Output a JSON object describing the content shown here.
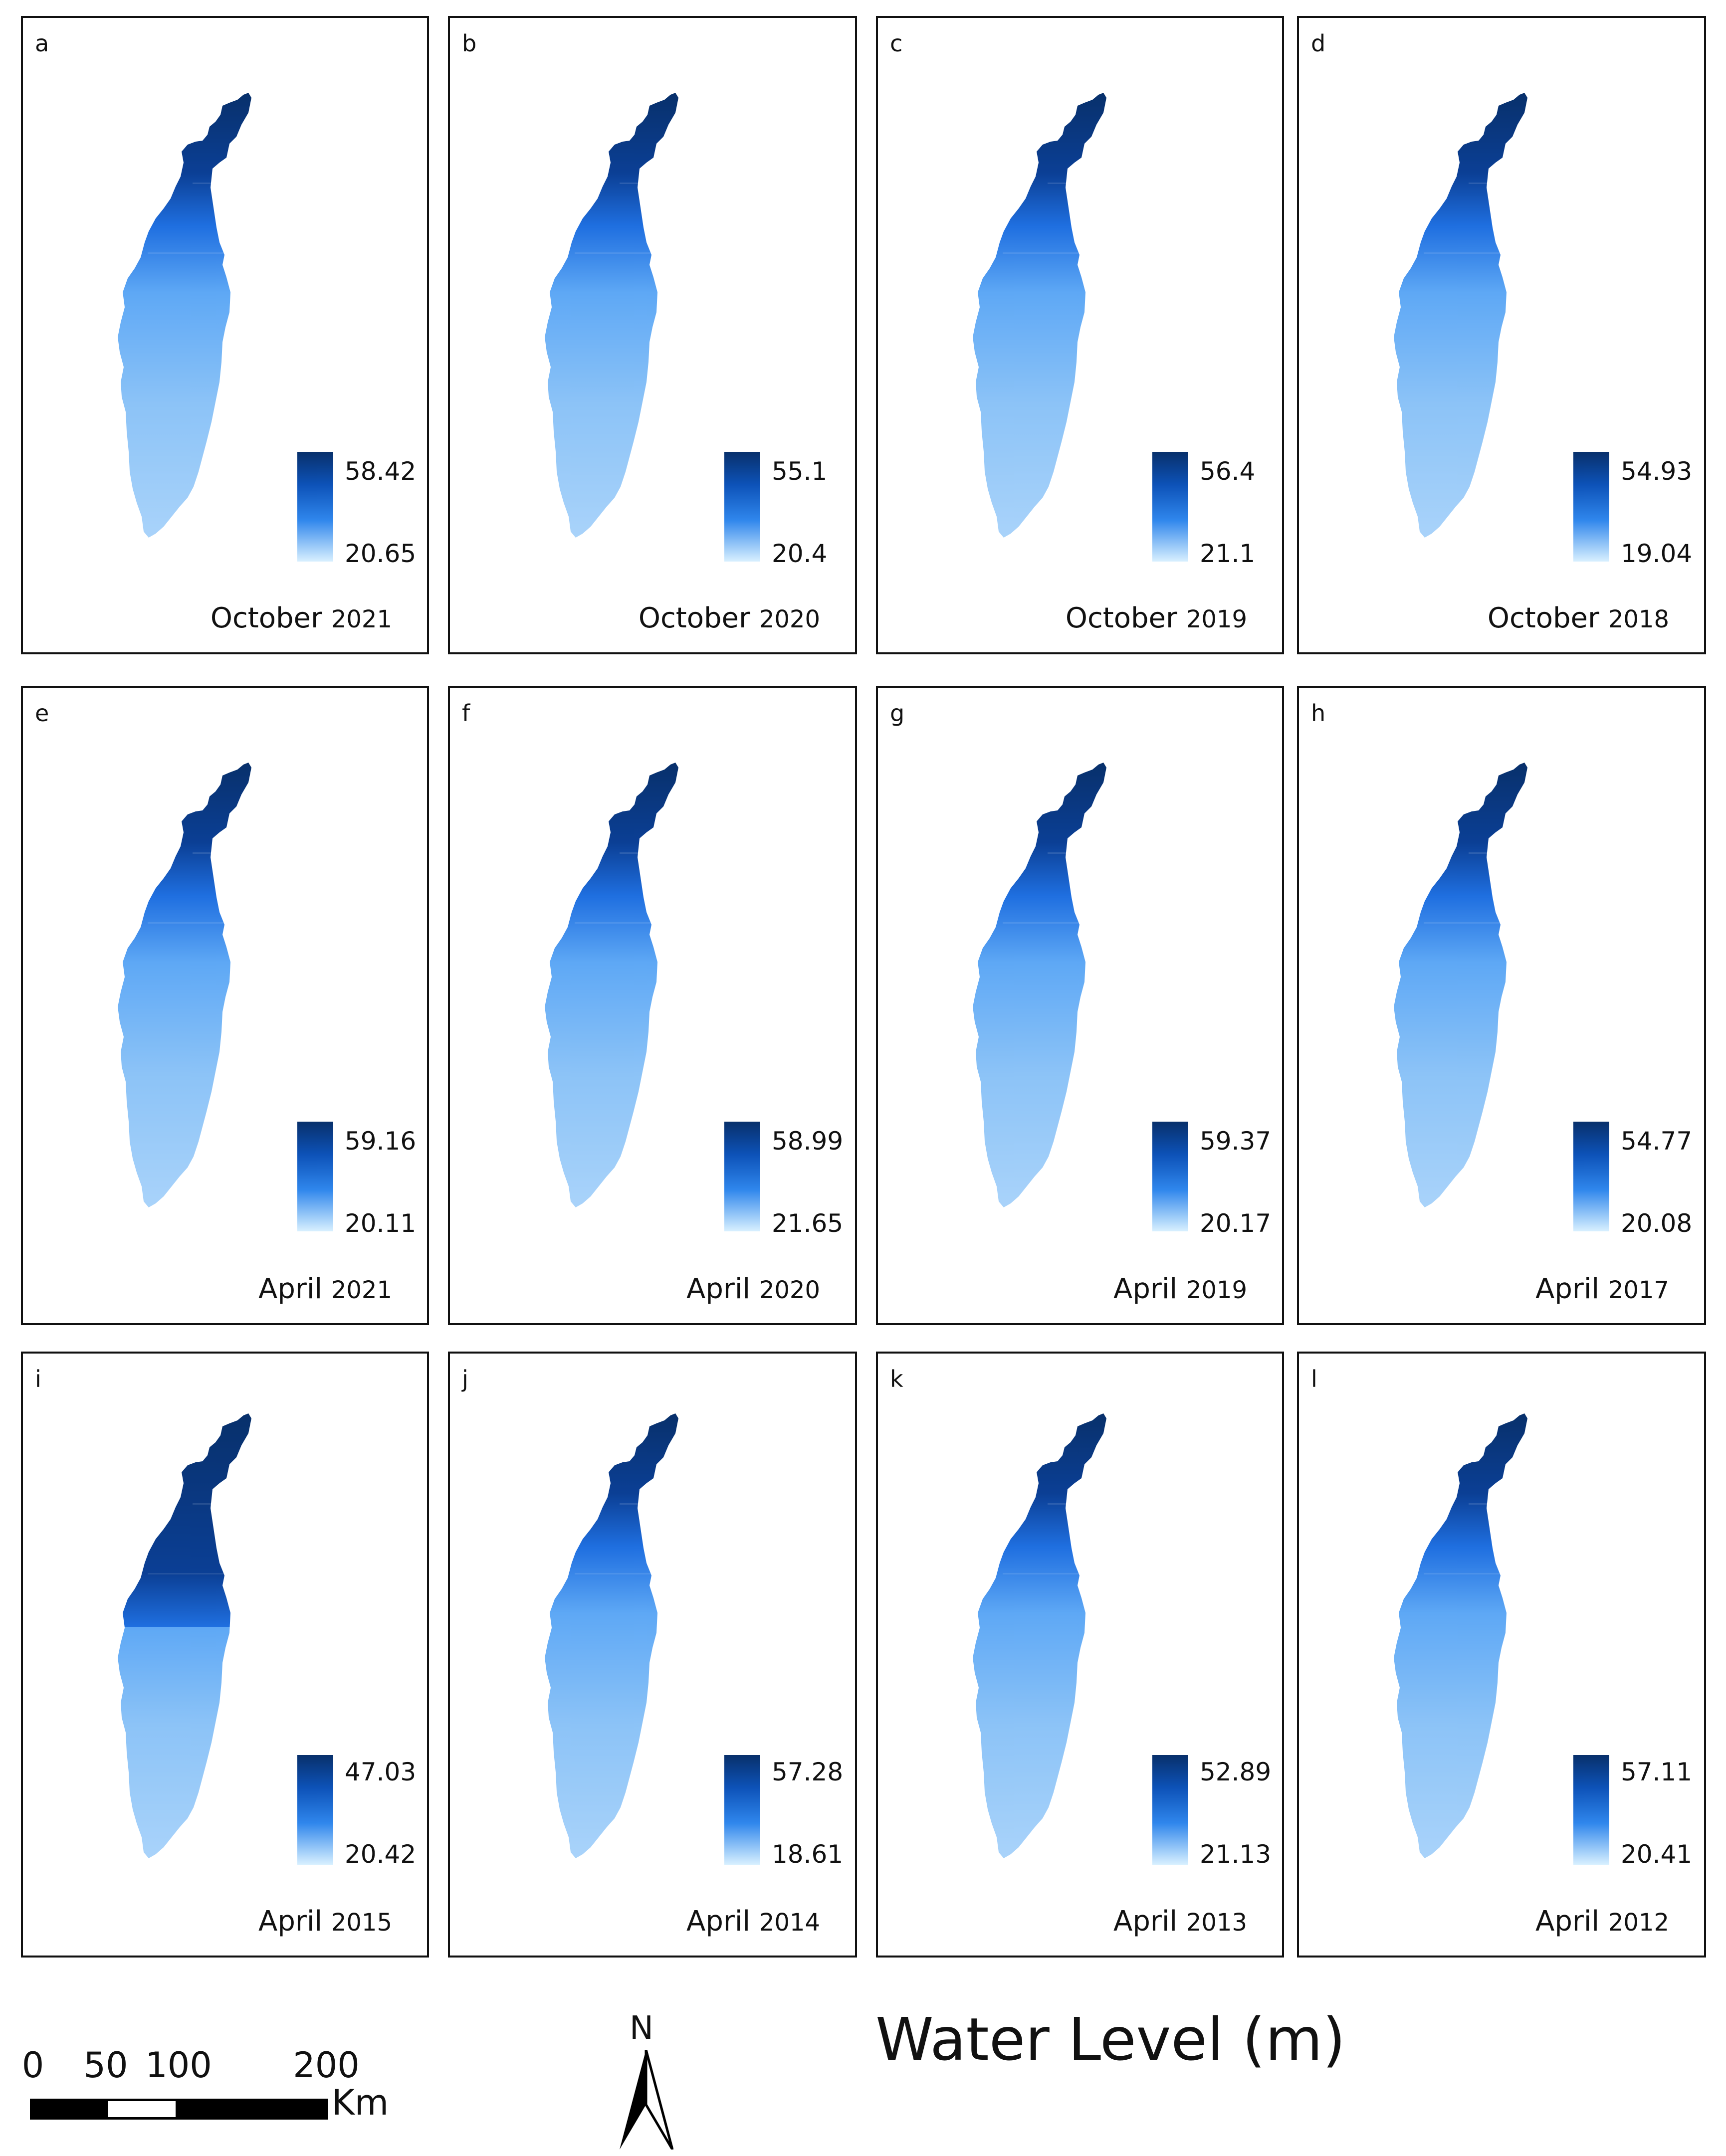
{
  "panels": [
    {
      "letter": "a",
      "max": "58.42",
      "min": "20.65",
      "month": "October",
      "year": "2021"
    },
    {
      "letter": "b",
      "max": "55.1",
      "min": "20.4",
      "month": "October",
      "year": "2020"
    },
    {
      "letter": "c",
      "max": "56.4",
      "min": "21.1",
      "month": "October",
      "year": "2019"
    },
    {
      "letter": "d",
      "max": "54.93",
      "min": "19.04",
      "month": "October",
      "year": "2018"
    },
    {
      "letter": "e",
      "max": "59.16",
      "min": "20.11",
      "month": "April",
      "year": "2021"
    },
    {
      "letter": "f",
      "max": "58.99",
      "min": "21.65",
      "month": "April",
      "year": "2020"
    },
    {
      "letter": "g",
      "max": "59.37",
      "min": "20.17",
      "month": "April",
      "year": "2019"
    },
    {
      "letter": "h",
      "max": "54.77",
      "min": "20.08",
      "month": "April",
      "year": "2017"
    },
    {
      "letter": "i",
      "max": "47.03",
      "min": "20.42",
      "month": "April",
      "year": "2015"
    },
    {
      "letter": "j",
      "max": "57.28",
      "min": "18.61",
      "month": "April",
      "year": "2014"
    },
    {
      "letter": "k",
      "max": "52.89",
      "min": "21.13",
      "month": "April",
      "year": "2013"
    },
    {
      "letter": "l",
      "max": "57.11",
      "min": "20.41",
      "month": "April",
      "year": "2012"
    }
  ],
  "scalebar": {
    "labels": [
      "0",
      "50",
      "100",
      "200"
    ],
    "unit": "Km"
  },
  "north_arrow": {
    "label": "N"
  },
  "title": "Water Level (m)",
  "colors": {
    "dark": "#08306b",
    "mid": "#1f6fe0",
    "light": "#d8f0ff",
    "frame": "#111111"
  }
}
